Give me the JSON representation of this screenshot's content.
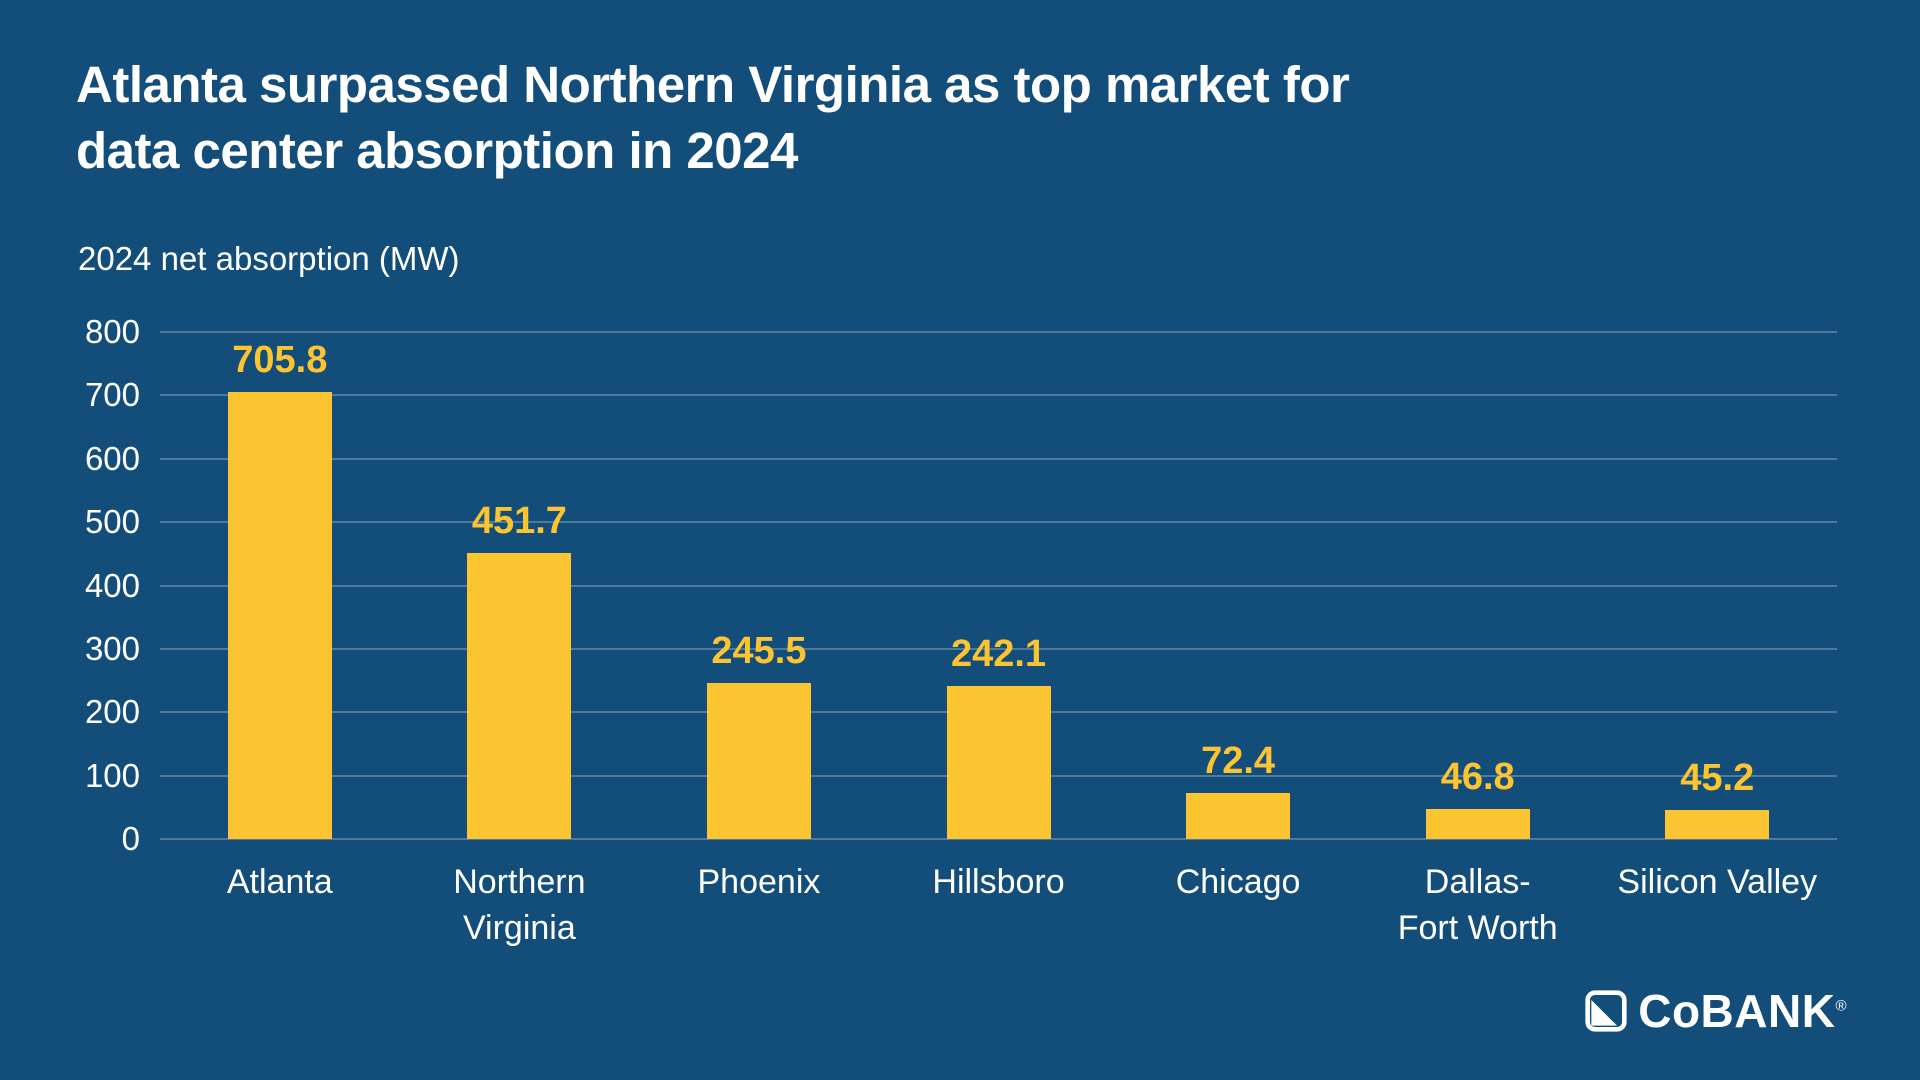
{
  "chart_data": {
    "type": "bar",
    "title": "Atlanta surpassed Northern Virginia as top market for\ndata center absorption in 2024",
    "subtitle": "2024 net absorption (MW)",
    "categories": [
      "Atlanta",
      "Northern\nVirginia",
      "Phoenix",
      "Hillsboro",
      "Chicago",
      "Dallas-\nFort Worth",
      "Silicon Valley"
    ],
    "values": [
      705.8,
      451.7,
      245.5,
      242.1,
      72.4,
      46.8,
      45.2
    ],
    "value_labels": [
      "705.8",
      "451.7",
      "245.5",
      "242.1",
      "72.4",
      "46.8",
      "45.2"
    ],
    "ylim": [
      0,
      800
    ],
    "ytick_interval": 100,
    "grid": true,
    "legend": "none",
    "colors": {
      "background": "#134E7B",
      "bar": "#FDC431",
      "value_label": "#FDC431",
      "text": "#FFFFFF",
      "gridline": "rgba(255,255,255,0.25)"
    }
  },
  "branding": {
    "logo_text": "CoBANK",
    "registered": "®"
  }
}
